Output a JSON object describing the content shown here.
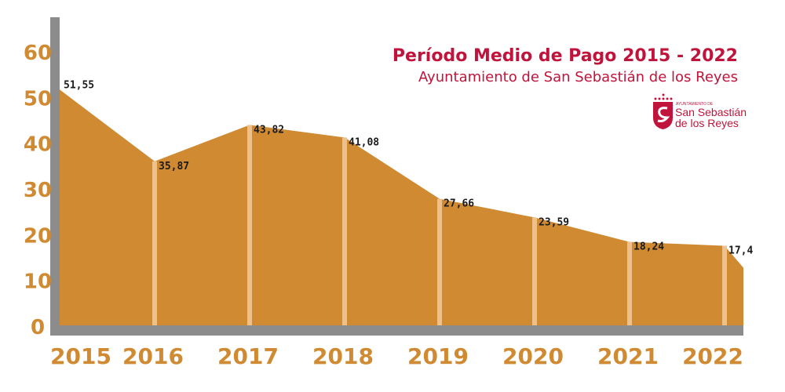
{
  "chart_data": {
    "type": "area",
    "title": "Período Medio de Pago 2015 - 2022",
    "subtitle": "Ayuntamiento de San Sebastián de los Reyes",
    "categories": [
      "2015",
      "2016",
      "2017",
      "2018",
      "2019",
      "2020",
      "2021",
      "2022"
    ],
    "values": [
      51.55,
      35.87,
      43.82,
      41.08,
      27.66,
      23.59,
      18.24,
      17.4
    ],
    "data_labels": [
      "51,55",
      "35,87",
      "43,82",
      "41,08",
      "27,66",
      "23,59",
      "18,24",
      "17,4"
    ],
    "yticks": [
      "0",
      "10",
      "20",
      "30",
      "40",
      "50",
      "60"
    ],
    "ylim": [
      0,
      60
    ],
    "grid": false,
    "colors": {
      "area": "#CF8A32",
      "year_lines": "#EDC08C",
      "axis": "#8C8C8C",
      "ticks": "#CF8A32",
      "title": "#C0143C"
    }
  },
  "logo": {
    "small": "AYUNTAMIENTO DE",
    "line1": "San Sebastián",
    "line2": "de los Reyes"
  }
}
